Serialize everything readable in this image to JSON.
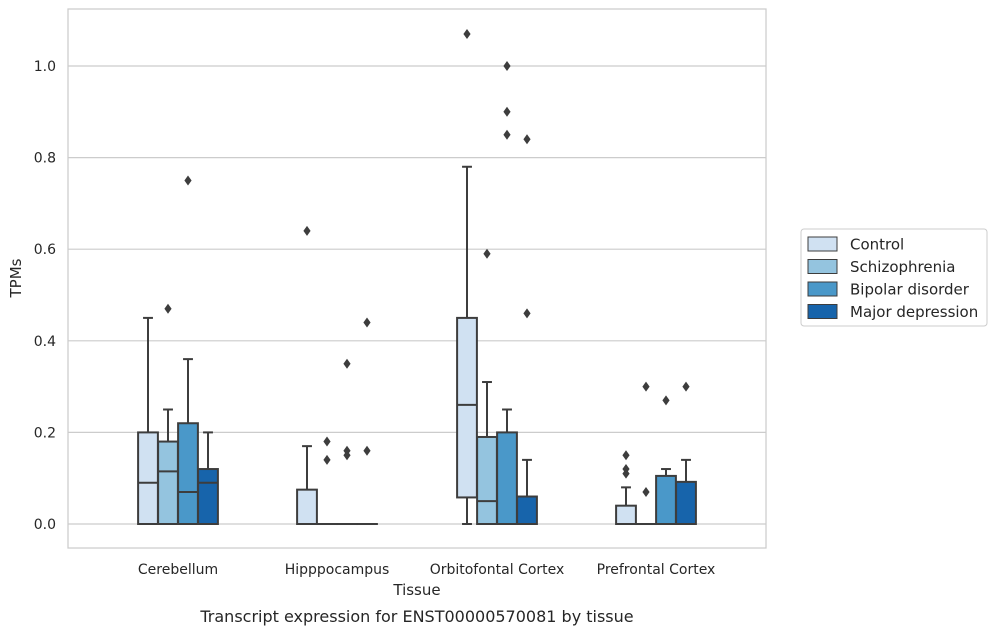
{
  "caption": "Transcript expression for ENST00000570081 by tissue",
  "chart_data": {
    "type": "box",
    "xlabel": "Tissue",
    "ylabel": "TPMs",
    "ylim": [
      -0.05,
      1.13
    ],
    "yticks": [
      "0.0",
      "0.2",
      "0.4",
      "0.6",
      "0.8",
      "1.0"
    ],
    "grid": "horizontal",
    "legend_position": "right",
    "categories": [
      "Cerebellum",
      "Hipppocampus",
      "Orbitofontal Cortex",
      "Prefrontal Cortex"
    ],
    "series": [
      {
        "name": "Control",
        "color": "#d0e1f2",
        "boxes": [
          {
            "q1": 0.0,
            "median": 0.09,
            "q3": 0.2,
            "whisker_low": 0.0,
            "whisker_high": 0.45,
            "outliers": []
          },
          {
            "q1": 0.0,
            "median": 0.0,
            "q3": 0.075,
            "whisker_low": 0.0,
            "whisker_high": 0.17,
            "outliers": [
              0.64
            ]
          },
          {
            "q1": 0.058,
            "median": 0.26,
            "q3": 0.45,
            "whisker_low": 0.0,
            "whisker_high": 0.78,
            "outliers": [
              1.07
            ]
          },
          {
            "q1": 0.0,
            "median": 0.0,
            "q3": 0.04,
            "whisker_low": 0.0,
            "whisker_high": 0.08,
            "outliers": [
              0.15,
              0.12,
              0.11
            ]
          }
        ]
      },
      {
        "name": "Schizophrenia",
        "color": "#94c4df",
        "boxes": [
          {
            "q1": 0.0,
            "median": 0.115,
            "q3": 0.18,
            "whisker_low": 0.0,
            "whisker_high": 0.25,
            "outliers": [
              0.47
            ]
          },
          {
            "q1": 0.0,
            "median": 0.0,
            "q3": 0.0,
            "whisker_low": 0.0,
            "whisker_high": 0.0,
            "outliers": [
              0.18,
              0.14
            ]
          },
          {
            "q1": 0.0,
            "median": 0.05,
            "q3": 0.19,
            "whisker_low": 0.0,
            "whisker_high": 0.31,
            "outliers": [
              0.59
            ]
          },
          {
            "q1": 0.0,
            "median": 0.0,
            "q3": 0.0,
            "whisker_low": 0.0,
            "whisker_high": 0.0,
            "outliers": [
              0.3,
              0.07
            ]
          }
        ]
      },
      {
        "name": "Bipolar disorder",
        "color": "#4a98c9",
        "boxes": [
          {
            "q1": 0.0,
            "median": 0.07,
            "q3": 0.22,
            "whisker_low": 0.0,
            "whisker_high": 0.36,
            "outliers": [
              0.75
            ]
          },
          {
            "q1": 0.0,
            "median": 0.0,
            "q3": 0.0,
            "whisker_low": 0.0,
            "whisker_high": 0.0,
            "outliers": [
              0.35,
              0.16,
              0.15
            ]
          },
          {
            "q1": 0.0,
            "median": 0.0,
            "q3": 0.2,
            "whisker_low": 0.0,
            "whisker_high": 0.25,
            "outliers": [
              1.0,
              0.9,
              0.85
            ]
          },
          {
            "q1": 0.0,
            "median": 0.0,
            "q3": 0.105,
            "whisker_low": 0.0,
            "whisker_high": 0.12,
            "outliers": [
              0.27
            ]
          }
        ]
      },
      {
        "name": "Major depression",
        "color": "#1764ab",
        "boxes": [
          {
            "q1": 0.0,
            "median": 0.09,
            "q3": 0.12,
            "whisker_low": 0.0,
            "whisker_high": 0.2,
            "outliers": []
          },
          {
            "q1": 0.0,
            "median": 0.0,
            "q3": 0.0,
            "whisker_low": 0.0,
            "whisker_high": 0.0,
            "outliers": [
              0.44,
              0.16
            ]
          },
          {
            "q1": 0.0,
            "median": 0.0,
            "q3": 0.06,
            "whisker_low": 0.0,
            "whisker_high": 0.14,
            "outliers": [
              0.84,
              0.46
            ]
          },
          {
            "q1": 0.0,
            "median": 0.0,
            "q3": 0.092,
            "whisker_low": 0.0,
            "whisker_high": 0.14,
            "outliers": [
              0.3
            ]
          }
        ]
      }
    ]
  }
}
